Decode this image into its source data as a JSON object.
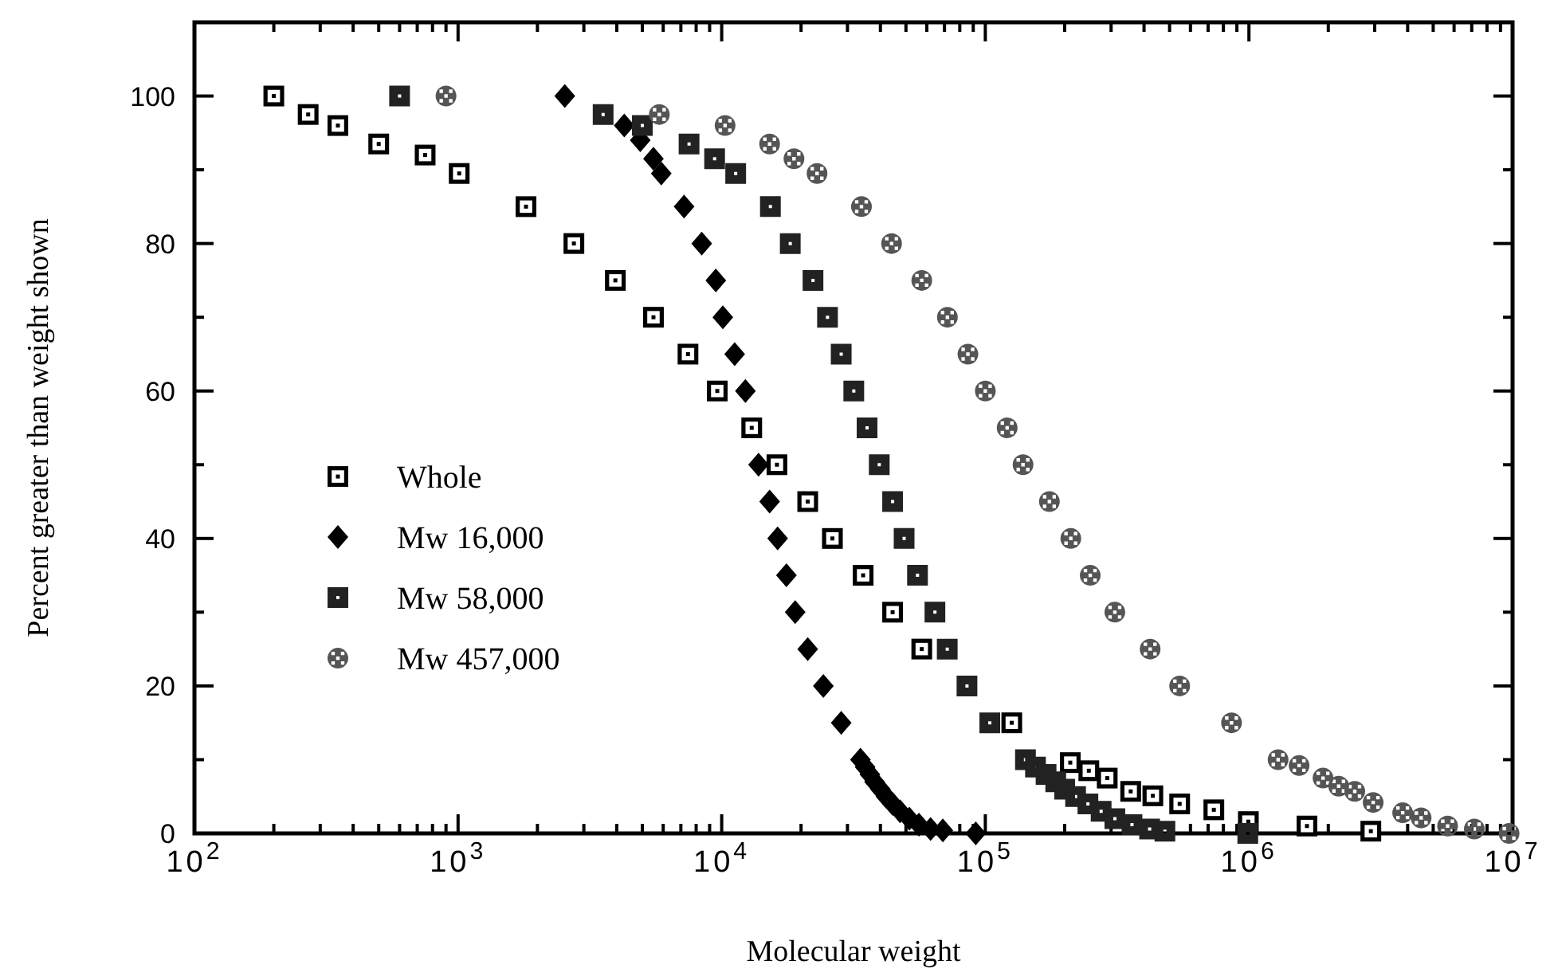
{
  "chart_data": {
    "type": "scatter",
    "xlabel": "Molecular weight",
    "ylabel": "Percent greater than weight shown",
    "log": "x",
    "xlim": [
      100,
      10000000
    ],
    "ylim": [
      0,
      110
    ],
    "xticks": [
      {
        "value": 100,
        "label": "10$^{2}$"
      },
      {
        "value": 200,
        "label": null
      },
      {
        "value": 300,
        "label": null
      },
      {
        "value": 400,
        "label": null
      },
      {
        "value": 500,
        "label": null
      },
      {
        "value": 600,
        "label": null
      },
      {
        "value": 700,
        "label": null
      },
      {
        "value": 800,
        "label": null
      },
      {
        "value": 900,
        "label": null
      },
      {
        "value": 1000,
        "label": "10$^{3}$"
      },
      {
        "value": 2000,
        "label": null
      },
      {
        "value": 3000,
        "label": null
      },
      {
        "value": 4000,
        "label": null
      },
      {
        "value": 5000,
        "label": null
      },
      {
        "value": 6000,
        "label": null
      },
      {
        "value": 7000,
        "label": null
      },
      {
        "value": 8000,
        "label": null
      },
      {
        "value": 9000,
        "label": null
      },
      {
        "value": 10000,
        "label": "10$^{4}$"
      },
      {
        "value": 20000,
        "label": null
      },
      {
        "value": 30000,
        "label": null
      },
      {
        "value": 40000,
        "label": null
      },
      {
        "value": 50000,
        "label": null
      },
      {
        "value": 60000,
        "label": null
      },
      {
        "value": 70000,
        "label": null
      },
      {
        "value": 80000,
        "label": null
      },
      {
        "value": 90000,
        "label": null
      },
      {
        "value": 100000,
        "label": "10$^{5}$"
      },
      {
        "value": 200000,
        "label": null
      },
      {
        "value": 300000,
        "label": null
      },
      {
        "value": 400000,
        "label": null
      },
      {
        "value": 500000,
        "label": null
      },
      {
        "value": 600000,
        "label": null
      },
      {
        "value": 700000,
        "label": null
      },
      {
        "value": 800000,
        "label": null
      },
      {
        "value": 900000,
        "label": null
      },
      {
        "value": 1000000,
        "label": "10$^{6}$"
      },
      {
        "value": 2000000,
        "label": null
      },
      {
        "value": 3000000,
        "label": null
      },
      {
        "value": 4000000,
        "label": null
      },
      {
        "value": 5000000,
        "label": null
      },
      {
        "value": 6000000,
        "label": null
      },
      {
        "value": 7000000,
        "label": null
      },
      {
        "value": 8000000,
        "label": null
      },
      {
        "value": 9000000,
        "label": null
      },
      {
        "value": 10000000,
        "label": "10$^{7}$"
      }
    ],
    "yticks": [
      0,
      {
        "value": 10,
        "label": null
      },
      20,
      {
        "value": 30,
        "label": null
      },
      40,
      {
        "value": 50,
        "label": null
      },
      60,
      {
        "value": 70,
        "label": null
      },
      80,
      {
        "value": 90,
        "label": null
      },
      100
    ],
    "grid": false,
    "legend": "left",
    "series": [
      {
        "name": "Whole",
        "color": "#000000",
        "marker": "square",
        "x": [
          200,
          270,
          350,
          500,
          750,
          1010,
          1810,
          2750,
          3950,
          5510,
          7450,
          9620,
          13000,
          16200,
          21200,
          26300,
          34400,
          44500,
          57400,
          126000,
          210000,
          247000,
          290000,
          356000,
          432000,
          546000,
          736000,
          995000,
          1660000,
          2900000
        ],
        "values": [
          100,
          97.5,
          96,
          93.5,
          92,
          89.5,
          85,
          80,
          75,
          70,
          65,
          60,
          55,
          50,
          45,
          40,
          35,
          30,
          25,
          15,
          9.6,
          8.5,
          7.5,
          5.7,
          5.1,
          4,
          3.2,
          1.6,
          1,
          0.3
        ]
      },
      {
        "name": "Mw 16,000",
        "color": "#000000",
        "marker": "diamond",
        "x": [
          2540,
          4270,
          4910,
          5510,
          5900,
          7200,
          8400,
          9500,
          10100,
          11200,
          12300,
          13800,
          15200,
          16300,
          17600,
          19000,
          21200,
          24300,
          28400,
          33600,
          35000,
          36500,
          38000,
          40000,
          42000,
          44500,
          47500,
          51500,
          56000,
          62000,
          69000,
          92000
        ],
        "values": [
          100,
          96,
          94,
          91.5,
          89.5,
          85,
          80,
          75,
          70,
          65,
          60,
          50,
          45,
          40,
          35,
          30,
          25,
          20,
          15,
          10,
          9,
          8,
          7,
          6,
          5,
          4,
          3,
          2,
          1.2,
          0.6,
          0.4,
          0
        ]
      },
      {
        "name": "Mw 58,000",
        "color": "#222222",
        "marker": "square",
        "x": [
          600,
          3550,
          5000,
          7520,
          9400,
          11300,
          15300,
          18200,
          22200,
          25200,
          28400,
          31700,
          35600,
          39600,
          44500,
          49200,
          55300,
          64400,
          71700,
          85200,
          104000,
          142000,
          155000,
          170000,
          185000,
          200000,
          220000,
          245000,
          275000,
          310000,
          360000,
          420000,
          480000,
          990000
        ],
        "values": [
          100,
          97.5,
          96,
          93.5,
          91.5,
          89.5,
          85,
          80,
          75,
          70,
          65,
          60,
          55,
          50,
          45,
          40,
          35,
          30,
          25,
          20,
          15,
          10,
          9,
          8,
          7,
          6,
          5,
          4,
          3,
          2,
          1.2,
          0.6,
          0.3,
          0
        ]
      },
      {
        "name": "Mw 457,000",
        "color": "#555555",
        "marker": "circle",
        "x": [
          900,
          5800,
          10300,
          15200,
          18800,
          23000,
          33900,
          44100,
          57400,
          71800,
          85900,
          100000,
          121000,
          139000,
          175000,
          211000,
          250000,
          310000,
          422000,
          546000,
          859000,
          1290000,
          1550000,
          1910000,
          2190000,
          2520000,
          2960000,
          3830000,
          4500000,
          5670000,
          7160000,
          9700000
        ],
        "values": [
          100,
          97.5,
          96,
          93.5,
          91.5,
          89.5,
          85,
          80,
          75,
          70,
          65,
          60,
          55,
          50,
          45,
          40,
          35,
          30,
          25,
          20,
          15,
          10,
          9.2,
          7.5,
          6.4,
          5.7,
          4.2,
          2.8,
          2.1,
          1,
          0.6,
          0
        ]
      }
    ]
  }
}
